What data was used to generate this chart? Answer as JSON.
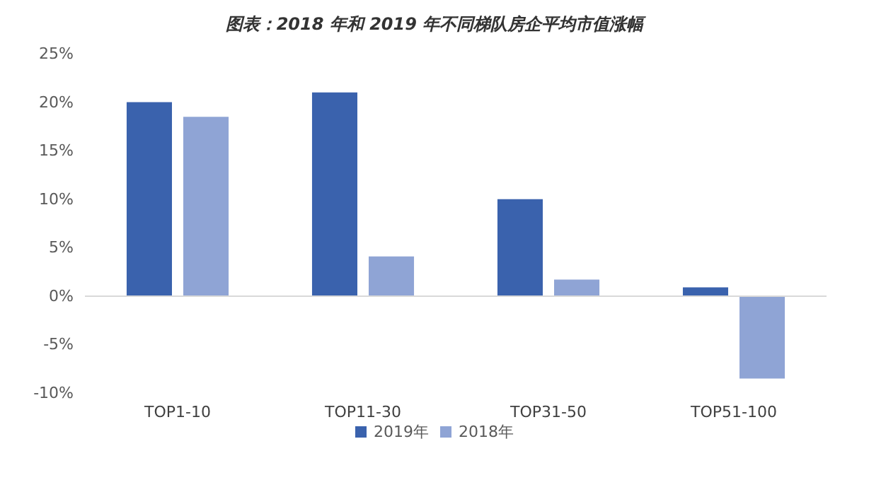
{
  "chart_data": {
    "type": "bar",
    "title": "图表：2018 年和 2019 年不同梯队房企平均市值涨幅",
    "categories": [
      "TOP1-10",
      "TOP11-30",
      "TOP31-50",
      "TOP51-100"
    ],
    "series": [
      {
        "name": "2019年",
        "color": "#3a62ad",
        "values": [
          20.0,
          21.0,
          10.0,
          0.9
        ]
      },
      {
        "name": "2018年",
        "color": "#8fa4d5",
        "values": [
          18.5,
          4.1,
          1.7,
          -8.5
        ]
      }
    ],
    "ylim": [
      -10,
      25
    ],
    "yticks": [
      {
        "value": -10,
        "label": "-10%"
      },
      {
        "value": -5,
        "label": "-5%"
      },
      {
        "value": 0,
        "label": "0%"
      },
      {
        "value": 5,
        "label": "5%"
      },
      {
        "value": 10,
        "label": "10%"
      },
      {
        "value": 15,
        "label": "15%"
      },
      {
        "value": 20,
        "label": "20%"
      },
      {
        "value": 25,
        "label": "25%"
      }
    ],
    "ref_lines": [
      {
        "axis": "y",
        "value": 0,
        "color": "#d9d9d9",
        "line_style": "solid"
      }
    ],
    "grid": false,
    "legend": "bottom"
  }
}
